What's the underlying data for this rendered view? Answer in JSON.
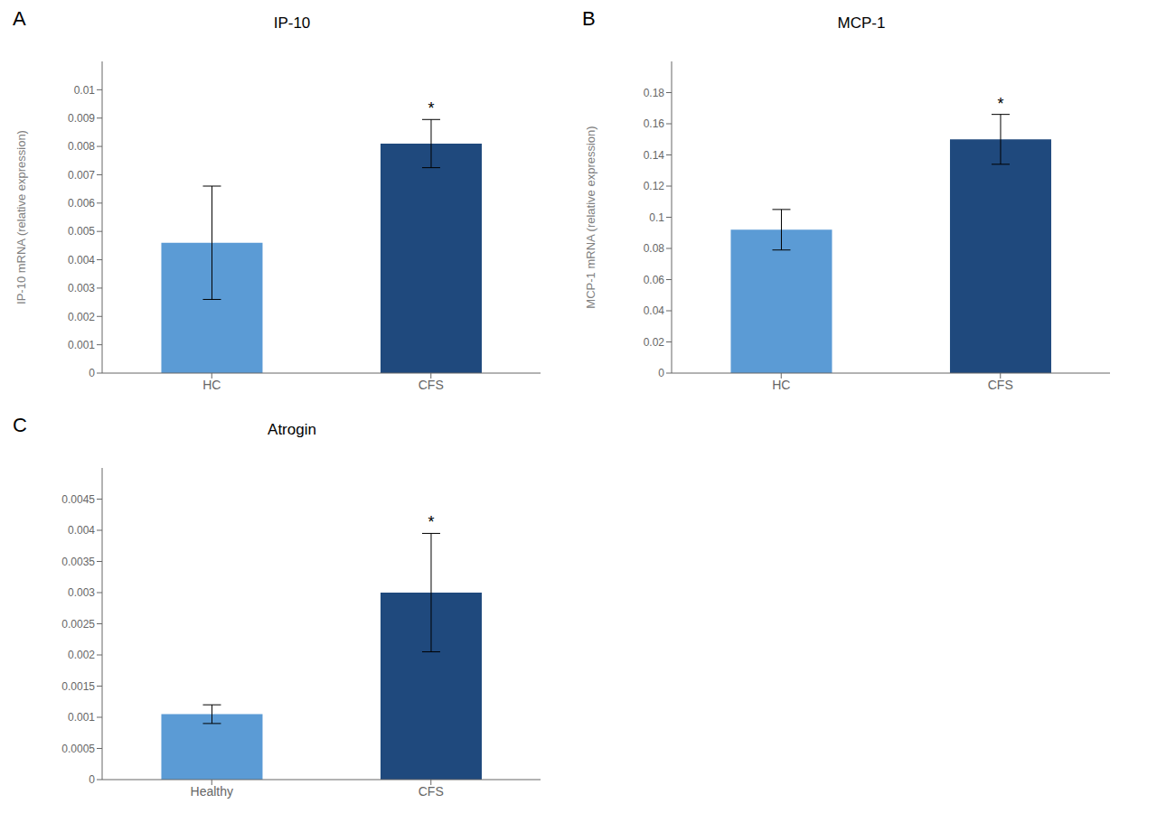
{
  "chart_data": [
    {
      "type": "bar",
      "panel_label": "A",
      "title": "IP-10",
      "ylabel": "IP-10 mRNA (relative expression)",
      "categories": [
        "HC",
        "CFS"
      ],
      "values": [
        0.0046,
        0.0081
      ],
      "errors": [
        0.002,
        0.00085
      ],
      "colors": [
        "#5B9BD5",
        "#1F497D"
      ],
      "ylim": [
        0,
        0.011
      ],
      "yticks": [
        0,
        0.001,
        0.002,
        0.003,
        0.004,
        0.005,
        0.006,
        0.007,
        0.008,
        0.009,
        0.01
      ],
      "annotations": [
        {
          "text": "*",
          "x": "CFS"
        }
      ],
      "grid": false
    },
    {
      "type": "bar",
      "panel_label": "B",
      "title": "MCP-1",
      "ylabel": "MCP-1 mRNA (relative expression)",
      "categories": [
        "HC",
        "CFS"
      ],
      "values": [
        0.092,
        0.15
      ],
      "errors": [
        0.013,
        0.016
      ],
      "colors": [
        "#5B9BD5",
        "#1F497D"
      ],
      "ylim": [
        0,
        0.2
      ],
      "yticks": [
        0,
        0.02,
        0.04,
        0.06,
        0.08,
        0.1,
        0.12,
        0.14,
        0.16,
        0.18
      ],
      "annotations": [
        {
          "text": "*",
          "x": "CFS"
        }
      ],
      "grid": false
    },
    {
      "type": "bar",
      "panel_label": "C",
      "title": "Atrogin",
      "categories": [
        "Healthy",
        "CFS"
      ],
      "values": [
        0.00105,
        0.003
      ],
      "errors": [
        0.00015,
        0.00095
      ],
      "colors": [
        "#5B9BD5",
        "#1F497D"
      ],
      "ylim": [
        0,
        0.005
      ],
      "yticks": [
        0,
        0.0005,
        0.001,
        0.0015,
        0.002,
        0.0025,
        0.003,
        0.0035,
        0.004,
        0.0045
      ],
      "annotations": [
        {
          "text": "*",
          "x": "CFS"
        }
      ],
      "grid": false
    }
  ]
}
